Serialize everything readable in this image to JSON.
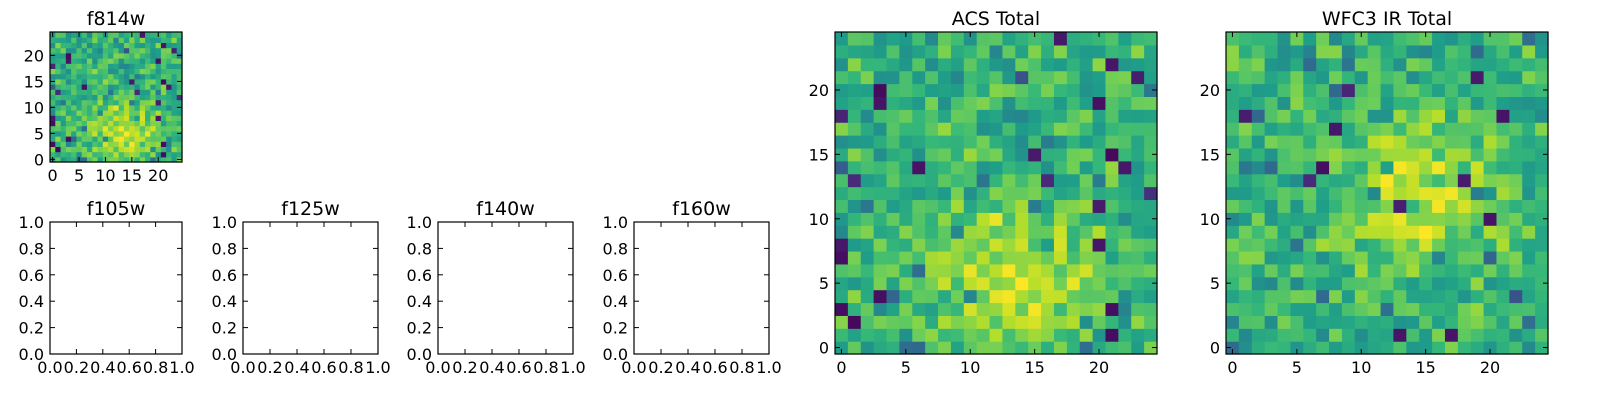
{
  "chart_data": [
    {
      "type": "heatmap",
      "title": "f814w",
      "grid_size": 25,
      "xlim": [
        -0.5,
        24.5
      ],
      "ylim": [
        -0.5,
        24.5
      ],
      "xticks": [
        0,
        5,
        10,
        15,
        20
      ],
      "yticks": [
        0,
        5,
        10,
        15,
        20
      ],
      "colormap": "viridis",
      "description_seed": 11,
      "bright_center": [
        13,
        5
      ]
    },
    {
      "type": "heatmap",
      "title": "ACS Total",
      "grid_size": 25,
      "xlim": [
        -0.5,
        24.5
      ],
      "ylim": [
        -0.5,
        24.5
      ],
      "xticks": [
        0,
        5,
        10,
        15,
        20
      ],
      "yticks": [
        0,
        5,
        10,
        15,
        20
      ],
      "colormap": "viridis",
      "description_seed": 11,
      "bright_center": [
        13,
        5
      ]
    },
    {
      "type": "heatmap",
      "title": "WFC3 IR Total",
      "grid_size": 25,
      "xlim": [
        -0.5,
        24.5
      ],
      "ylim": [
        -0.5,
        24.5
      ],
      "xticks": [
        0,
        5,
        10,
        15,
        20
      ],
      "yticks": [
        0,
        5,
        10,
        15,
        20
      ],
      "colormap": "viridis",
      "description_seed": 37,
      "bright_center": [
        15,
        12
      ]
    },
    {
      "type": "empty",
      "title": "f105w",
      "xlim": [
        0,
        1
      ],
      "ylim": [
        0,
        1
      ],
      "xticks": [
        "0.0",
        "0.2",
        "0.4",
        "0.6",
        "0.8",
        "1.0"
      ],
      "yticks": [
        "0.0",
        "0.2",
        "0.4",
        "0.6",
        "0.8",
        "1.0"
      ]
    },
    {
      "type": "empty",
      "title": "f125w",
      "xlim": [
        0,
        1
      ],
      "ylim": [
        0,
        1
      ],
      "xticks": [
        "0.0",
        "0.2",
        "0.4",
        "0.6",
        "0.8",
        "1.0"
      ],
      "yticks": [
        "0.0",
        "0.2",
        "0.4",
        "0.6",
        "0.8",
        "1.0"
      ]
    },
    {
      "type": "empty",
      "title": "f140w",
      "xlim": [
        0,
        1
      ],
      "ylim": [
        0,
        1
      ],
      "xticks": [
        "0.0",
        "0.2",
        "0.4",
        "0.6",
        "0.8",
        "1.0"
      ],
      "yticks": [
        "0.0",
        "0.2",
        "0.4",
        "0.6",
        "0.8",
        "1.0"
      ]
    },
    {
      "type": "empty",
      "title": "f160w",
      "xlim": [
        0,
        1
      ],
      "ylim": [
        0,
        1
      ],
      "xticks": [
        "0.0",
        "0.2",
        "0.4",
        "0.6",
        "0.8",
        "1.0"
      ],
      "yticks": [
        "0.0",
        "0.2",
        "0.4",
        "0.6",
        "0.8",
        "1.0"
      ]
    }
  ]
}
